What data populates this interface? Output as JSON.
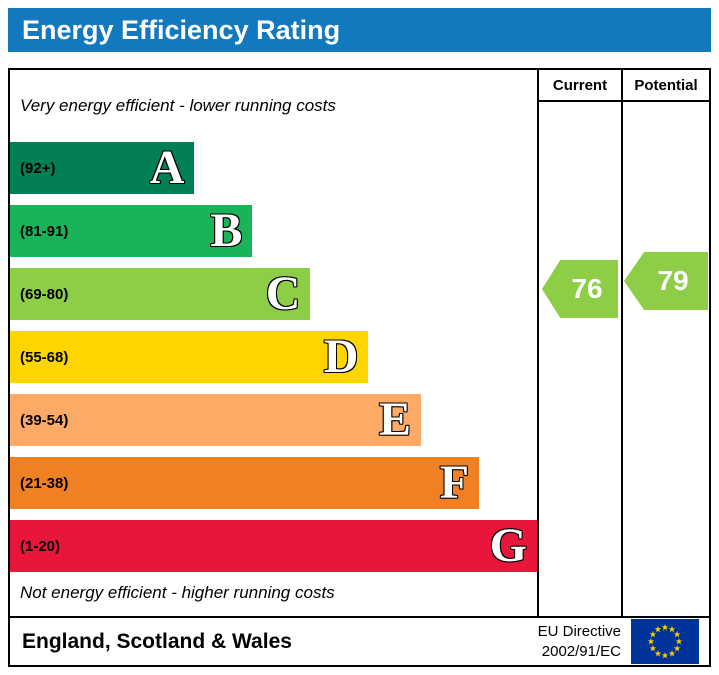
{
  "title": "Energy Efficiency Rating",
  "title_bar_color": "#1379bf",
  "columns": {
    "current": "Current",
    "potential": "Potential"
  },
  "top_note": "Very energy efficient - lower running costs",
  "bottom_note": "Not energy efficient - higher running costs",
  "bands": [
    {
      "letter": "A",
      "range": "(92+)",
      "color": "#008054",
      "width_pct": 35
    },
    {
      "letter": "B",
      "range": "(81-91)",
      "color": "#19b459",
      "width_pct": 46
    },
    {
      "letter": "C",
      "range": "(69-80)",
      "color": "#8dce46",
      "width_pct": 57
    },
    {
      "letter": "D",
      "range": "(55-68)",
      "color": "#ffd500",
      "width_pct": 68
    },
    {
      "letter": "E",
      "range": "(39-54)",
      "color": "#fcaa65",
      "width_pct": 78
    },
    {
      "letter": "F",
      "range": "(21-38)",
      "color": "#ef8023",
      "width_pct": 89
    },
    {
      "letter": "G",
      "range": "(1-20)",
      "color": "#e9153b",
      "width_pct": 100
    }
  ],
  "scores": {
    "current": {
      "value": "76",
      "color": "#8dce46"
    },
    "potential": {
      "value": "79",
      "color": "#8dce46"
    }
  },
  "footer": {
    "region": "England, Scotland & Wales",
    "directive_line1": "EU Directive",
    "directive_line2": "2002/91/EC"
  },
  "flag_colors": {
    "background": "#003399",
    "stars": "#ffcc00"
  },
  "chart_data": {
    "type": "bar",
    "title": "Energy Efficiency Rating",
    "categories": [
      "A",
      "B",
      "C",
      "D",
      "E",
      "F",
      "G"
    ],
    "band_ranges": [
      "92+",
      "81-91",
      "69-80",
      "55-68",
      "39-54",
      "21-38",
      "1-20"
    ],
    "band_colors": [
      "#008054",
      "#19b459",
      "#8dce46",
      "#ffd500",
      "#fcaa65",
      "#ef8023",
      "#e9153b"
    ],
    "bar_widths_pct": [
      35,
      46,
      57,
      68,
      78,
      89,
      100
    ],
    "markers": [
      {
        "name": "Current",
        "value": 76,
        "band": "C",
        "color": "#8dce46"
      },
      {
        "name": "Potential",
        "value": 79,
        "band": "C",
        "color": "#8dce46"
      }
    ],
    "annotations": [
      "Very energy efficient - lower running costs",
      "Not energy efficient - higher running costs"
    ],
    "legend_position": "none",
    "grid": false
  }
}
